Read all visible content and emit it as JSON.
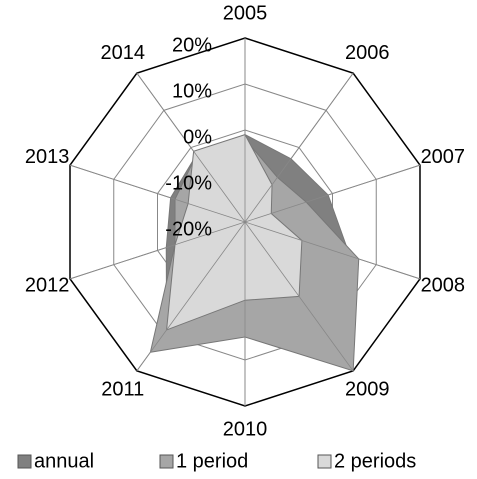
{
  "chart_data": {
    "type": "radar",
    "categories": [
      "2005",
      "2006",
      "2007",
      "2008",
      "2009",
      "2010",
      "2011",
      "2012",
      "2013",
      "2014"
    ],
    "ylim": [
      -20,
      20
    ],
    "yticks": [
      {
        "value": -20,
        "label": "-20%"
      },
      {
        "value": -10,
        "label": "-10%"
      },
      {
        "value": 0,
        "label": "0%"
      },
      {
        "value": 10,
        "label": "10%"
      },
      {
        "value": 20,
        "label": "20%"
      }
    ],
    "series": [
      {
        "name": "annual",
        "color": "#808080",
        "values": [
          -1,
          -3,
          -1,
          4,
          15,
          0,
          9,
          -2,
          -3,
          -2
        ]
      },
      {
        "name": "1 period",
        "color": "#a6a6a6",
        "values": [
          -2,
          -8,
          -6,
          6,
          20,
          5,
          15,
          -4,
          -4,
          -2
        ]
      },
      {
        "name": "2 periods",
        "color": "#d9d9d9",
        "values": [
          -1,
          -10,
          -14,
          -7,
          0,
          -3,
          9,
          -4,
          -7,
          -1
        ]
      }
    ]
  }
}
